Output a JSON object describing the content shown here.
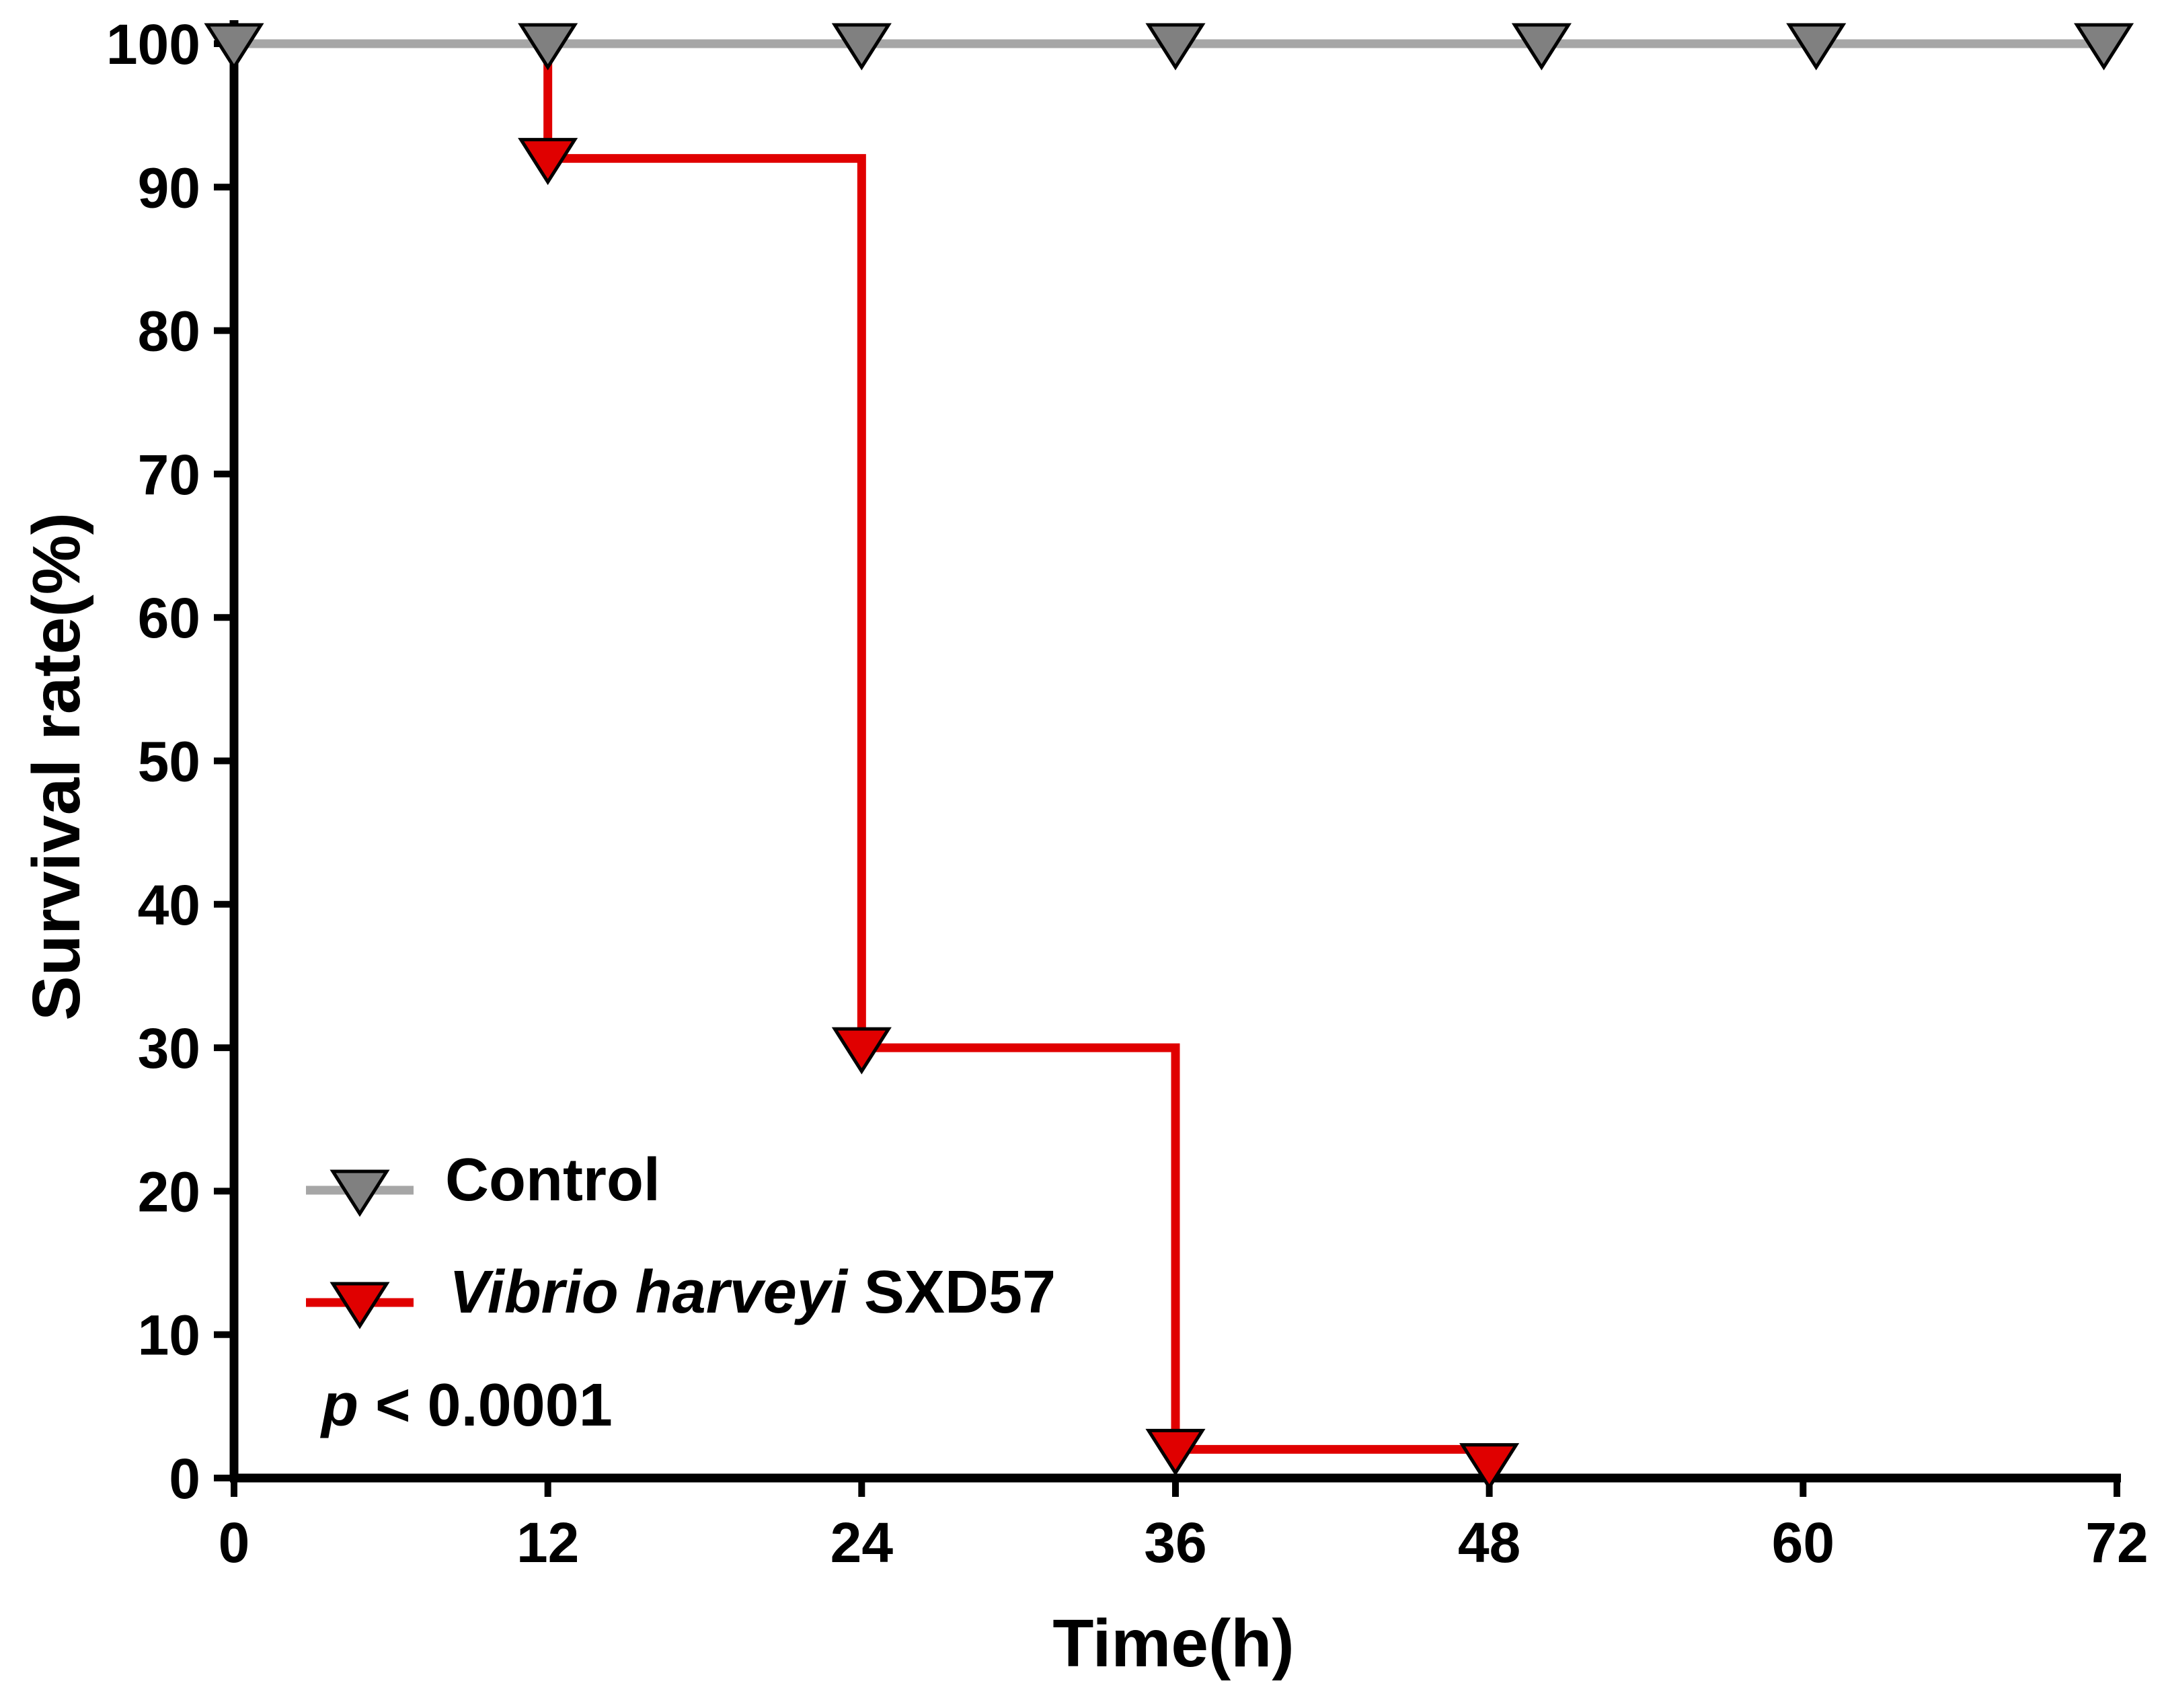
{
  "chart_data": {
    "type": "line",
    "subtype": "kaplan-meier step",
    "title": "",
    "xlabel": "Time(h)",
    "ylabel": "Survival rate(%)",
    "xlim": [
      0,
      72
    ],
    "ylim": [
      0,
      100
    ],
    "xticks": [
      "0",
      "12",
      "24",
      "36",
      "48",
      "60",
      "72"
    ],
    "yticks": [
      "0",
      "10",
      "20",
      "30",
      "40",
      "50",
      "60",
      "70",
      "80",
      "90",
      "100"
    ],
    "grid": false,
    "legend_position": "bottom-left",
    "series": [
      {
        "name": "Control",
        "color": "#a6a6a6",
        "marker": "down-triangle",
        "marker_fill": "#808080",
        "x": [
          0,
          12,
          24,
          36,
          50,
          60.5,
          71.5
        ],
        "y": [
          100,
          100,
          100,
          100,
          100,
          100,
          100
        ],
        "line_end_x": 72
      },
      {
        "name_italic": "Vibrio harveyi",
        "name_rest": " SXD57",
        "color": "#e00000",
        "marker": "down-triangle",
        "marker_fill": "#e00000",
        "x": [
          12,
          12,
          24,
          24,
          36,
          36,
          48
        ],
        "y": [
          100,
          92,
          92,
          30,
          30,
          2,
          2
        ],
        "marker_points": [
          [
            12,
            92
          ],
          [
            24,
            30
          ],
          [
            36,
            2
          ],
          [
            48,
            1
          ]
        ]
      }
    ],
    "annotation": {
      "p_symbol": "p",
      "p_rest": " < 0.0001"
    }
  }
}
